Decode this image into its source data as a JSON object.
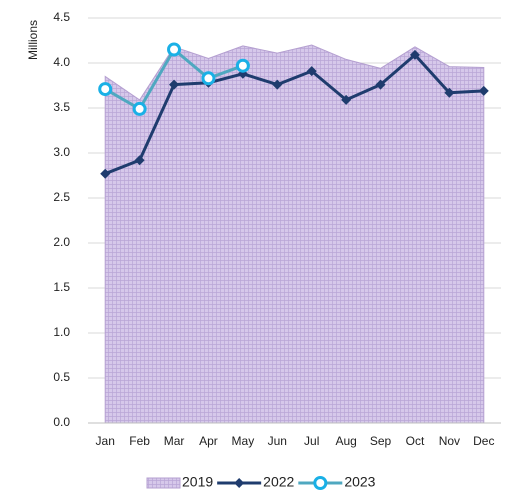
{
  "chart_data": {
    "type": "line",
    "y_label": "Millions",
    "categories": [
      "Jan",
      "Feb",
      "Mar",
      "Apr",
      "May",
      "Jun",
      "Jul",
      "Aug",
      "Sep",
      "Oct",
      "Nov",
      "Dec"
    ],
    "ylim": [
      0,
      4.5
    ],
    "yticks": [
      {
        "value": 0,
        "label": "0.0"
      },
      0.5,
      {
        "value": 1,
        "label": "1.0"
      },
      1.5,
      {
        "value": 2,
        "label": "2.0"
      },
      2.5,
      {
        "value": 3,
        "label": "3.0"
      },
      3.5,
      {
        "value": 4,
        "label": "4.0"
      },
      4.5
    ],
    "grid": true,
    "legend": "bottom",
    "series": [
      {
        "name": "2019",
        "type": "area",
        "color": "#d6c8ea",
        "values": [
          3.85,
          3.59,
          4.18,
          4.05,
          4.19,
          4.11,
          4.2,
          4.04,
          3.94,
          4.18,
          3.96,
          3.95
        ]
      },
      {
        "name": "2022",
        "type": "line",
        "marker": "diamond",
        "color": "#1f3c6e",
        "values": [
          2.77,
          2.92,
          3.76,
          3.78,
          3.88,
          3.76,
          3.91,
          3.59,
          3.76,
          4.09,
          3.67,
          3.69
        ]
      },
      {
        "name": "2023",
        "type": "line",
        "marker": "circle",
        "color": "#4fa8c0",
        "marker_color": "#1ab0e6",
        "values": [
          3.71,
          3.49,
          4.15,
          3.83,
          3.97,
          null,
          null,
          null,
          null,
          null,
          null,
          null
        ]
      }
    ]
  }
}
